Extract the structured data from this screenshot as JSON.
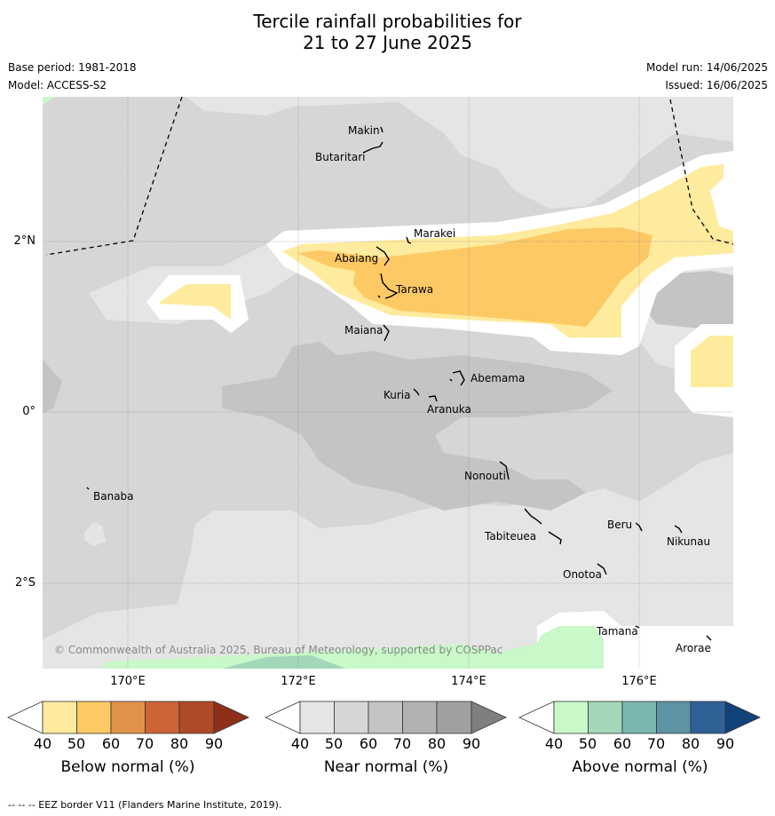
{
  "title": {
    "line1": "Tercile rainfall probabilities for",
    "line2": "21 to 27 June 2025"
  },
  "meta": {
    "base_period": "Base period: 1981-2018",
    "model": "Model: ACCESS-S2",
    "model_run": "Model run: 14/06/2025",
    "issued": "Issued: 16/06/2025"
  },
  "map": {
    "lon_labels": [
      "170°E",
      "172°E",
      "174°E",
      "176°E"
    ],
    "lat_labels": [
      "2°N",
      "0°",
      "2°S"
    ],
    "copyright": "© Commonwealth of Australia 2025, Bureau of Meteorology, supported by COSPPac",
    "islands": [
      {
        "name": "Makin",
        "lon": 172.99,
        "lat": 3.33
      },
      {
        "name": "Butaritari",
        "lon": 172.85,
        "lat": 3.07
      },
      {
        "name": "Marakei",
        "lon": 173.27,
        "lat": 2.01
      },
      {
        "name": "Abaiang",
        "lon": 173.0,
        "lat": 1.8
      },
      {
        "name": "Tarawa",
        "lon": 173.0,
        "lat": 1.45
      },
      {
        "name": "Maiana",
        "lon": 173.02,
        "lat": 0.93
      },
      {
        "name": "Abemama",
        "lon": 173.87,
        "lat": 0.4
      },
      {
        "name": "Kuria",
        "lon": 173.4,
        "lat": 0.24
      },
      {
        "name": "Aranuka",
        "lon": 173.62,
        "lat": 0.17
      },
      {
        "name": "Nonouti",
        "lon": 174.43,
        "lat": -0.67
      },
      {
        "name": "Banaba",
        "lon": 169.54,
        "lat": -0.86
      },
      {
        "name": "Tabiteuea",
        "lon": 174.8,
        "lat": -1.3
      },
      {
        "name": "Beru",
        "lon": 176.0,
        "lat": -1.33
      },
      {
        "name": "Nikunau",
        "lon": 176.45,
        "lat": -1.37
      },
      {
        "name": "Onotoa",
        "lon": 175.57,
        "lat": -1.85
      },
      {
        "name": "Tamana",
        "lon": 175.98,
        "lat": -2.5
      },
      {
        "name": "Arorae",
        "lon": 176.83,
        "lat": -2.65
      }
    ]
  },
  "colorbars": [
    {
      "label": "Below normal (%)",
      "colors": [
        "#ffffff",
        "#ffeb9d",
        "#fdc965",
        "#e1934b",
        "#cc6436",
        "#b04a26",
        "#8e2f1a"
      ]
    },
    {
      "label": "Near normal (%)",
      "colors": [
        "#ffffff",
        "#e5e5e5",
        "#d6d6d6",
        "#c4c4c4",
        "#b2b2b2",
        "#a0a0a0",
        "#7f7f7f"
      ]
    },
    {
      "label": "Above normal (%)",
      "colors": [
        "#ffffff",
        "#c9f8c9",
        "#a2d7b9",
        "#7cb6b0",
        "#5d93a4",
        "#306196",
        "#11427a"
      ]
    }
  ],
  "colorbar_ticks": [
    "40",
    "50",
    "60",
    "70",
    "80",
    "90"
  ],
  "footnote": "--  --  -- EEZ border V11 (Flanders Marine Institute, 2019)."
}
